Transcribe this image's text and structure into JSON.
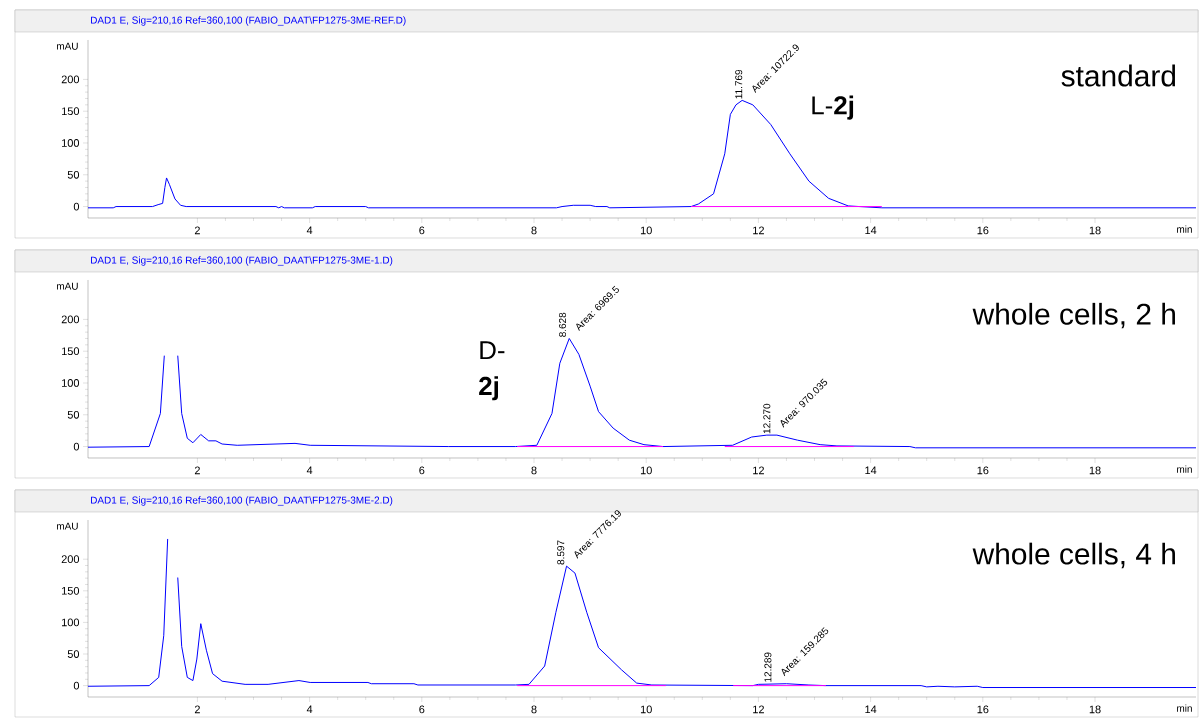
{
  "chart_data": [
    {
      "type": "line",
      "title": "DAD1 E, Sig=210,16 Ref=360,100 (FABIO_DAAT\\FP1275-3ME-REF.D)",
      "xlabel": "min",
      "ylabel": "mAU",
      "xlim": [
        0.05,
        19.8
      ],
      "ylim": [
        -18,
        262
      ],
      "xticks": [
        2,
        4,
        6,
        8,
        10,
        12,
        14,
        16,
        18
      ],
      "yticks": [
        0,
        50,
        100,
        150,
        200
      ],
      "series": [
        {
          "color": "#0000ff",
          "x": [
            0.05,
            0.5,
            0.55,
            1.2,
            1.3,
            1.38,
            1.42,
            1.45,
            1.5,
            1.6,
            1.7,
            1.8,
            3.4,
            3.45,
            3.5,
            3.55,
            4.05,
            4.1,
            5.0,
            5.05,
            8.4,
            8.5,
            8.7,
            9.0,
            9.1,
            9.3,
            9.35,
            10.8,
            10.93,
            11.2,
            11.4,
            11.5,
            11.6,
            11.71,
            11.9,
            12.22,
            12.56,
            12.9,
            13.25,
            13.6,
            14.2,
            19.8
          ],
          "values": [
            -2,
            -2,
            0,
            0,
            3,
            5,
            30,
            45,
            35,
            12,
            2,
            0,
            0,
            -2,
            0,
            -2,
            -2,
            0,
            0,
            -2,
            -2,
            0,
            2,
            2,
            0,
            0,
            -2,
            0,
            4,
            20,
            83,
            145,
            160,
            167,
            160,
            129,
            83,
            40,
            13,
            1,
            -2,
            -2
          ]
        },
        {
          "color": "#ff00ff",
          "x": [
            10.8,
            14.2
          ],
          "values": [
            0,
            0
          ]
        }
      ],
      "annotations": [
        "standard",
        "L-**2j**",
        {
          "text": "11.769",
          "x": 11.769,
          "y": 167
        },
        {
          "text": "Area: 10722.9",
          "x": 11.769,
          "y": 167
        }
      ]
    },
    {
      "type": "line",
      "title": "DAD1 E, Sig=210,16 Ref=360,100 (FABIO_DAAT\\FP1275-3ME-1.D)",
      "xlabel": "min",
      "ylabel": "mAU",
      "xlim": [
        0.05,
        19.8
      ],
      "ylim": [
        -18,
        262
      ],
      "xticks": [
        2,
        4,
        6,
        8,
        10,
        12,
        14,
        16,
        18
      ],
      "yticks": [
        0,
        50,
        100,
        150,
        200
      ],
      "series": [
        {
          "color": "#0000ff",
          "x": [
            0.05,
            1.14,
            1.34,
            1.41,
            1.48,
            1.58,
            1.65,
            1.72,
            1.82,
            1.92,
            2.06,
            2.2,
            2.33,
            2.44,
            2.71,
            3.74,
            4.01,
            6.48,
            7.67,
            8.05,
            8.32,
            8.46,
            8.628,
            8.8,
            9.0,
            9.15,
            9.41,
            9.7,
            9.96,
            10.3,
            11.54,
            11.88,
            12.15,
            12.33,
            12.7,
            13.1,
            13.4,
            14.7,
            14.8,
            19.8
          ],
          "values": [
            -1,
            0,
            52,
            143,
            null,
            null,
            143,
            52,
            13,
            6,
            19,
            9,
            9,
            4,
            2,
            5,
            2,
            0,
            0,
            2,
            52,
            131,
            170,
            145,
            95,
            55,
            29,
            10,
            3,
            0,
            2,
            15,
            18,
            18,
            10,
            3,
            1,
            0,
            -2,
            -2
          ]
        },
        {
          "color": "#ff00ff",
          "x": [
            7.7,
            10.3,
            10.31,
            11.4,
            13.7
          ],
          "values": [
            0,
            0,
            null,
            0,
            0
          ]
        }
      ],
      "annotations": [
        "whole cells, 2 h",
        "D-**2j**",
        {
          "text": "8.628",
          "x": 8.628,
          "y": 170
        },
        {
          "text": "Area: 6969.5",
          "x": 8.628,
          "y": 170
        },
        {
          "text": "12.270",
          "x": 12.27,
          "y": 18
        },
        {
          "text": "Area: 970.035",
          "x": 12.27,
          "y": 18
        }
      ]
    },
    {
      "type": "line",
      "title": "DAD1 E, Sig=210,16 Ref=360,100 (FABIO_DAAT\\FP1275-3ME-2.D)",
      "xlabel": "min",
      "ylabel": "mAU",
      "xlim": [
        0.05,
        19.8
      ],
      "ylim": [
        -18,
        262
      ],
      "xticks": [
        2,
        4,
        6,
        8,
        10,
        12,
        14,
        16,
        18
      ],
      "yticks": [
        0,
        50,
        100,
        150,
        200
      ],
      "series": [
        {
          "color": "#0000ff",
          "x": [
            0.05,
            1.14,
            1.31,
            1.4,
            1.47,
            1.49,
            1.6,
            1.65,
            1.72,
            1.82,
            1.92,
            1.99,
            2.06,
            2.16,
            2.27,
            2.44,
            2.85,
            3.26,
            3.81,
            4.01,
            5.04,
            5.1,
            5.86,
            5.93,
            7.67,
            7.91,
            8.19,
            8.39,
            8.58,
            8.73,
            8.94,
            9.15,
            9.56,
            9.83,
            10.1,
            11.9,
            12.0,
            12.5,
            12.9,
            13.2,
            14.9,
            15.0,
            15.2,
            15.5,
            15.9,
            16.0,
            19.8
          ],
          "values": [
            -1,
            0,
            13,
            79,
            232,
            null,
            null,
            171,
            62,
            13,
            8,
            42,
            98,
            56,
            19,
            7,
            2,
            2,
            8,
            5,
            5,
            3,
            3,
            1,
            1,
            2,
            31,
            116,
            189,
            178,
            116,
            60,
            25,
            4,
            1,
            0,
            2,
            3,
            1,
            0,
            0,
            -2,
            -1,
            -2,
            -1,
            -3,
            -3
          ]
        },
        {
          "color": "#ff00ff",
          "x": [
            7.7,
            10.35,
            10.36,
            11.55,
            13.2
          ],
          "values": [
            0,
            0,
            null,
            0,
            0
          ]
        }
      ],
      "annotations": [
        "whole cells, 4 h",
        {
          "text": "8.597",
          "x": 8.597,
          "y": 189
        },
        {
          "text": "Area: 7776.19",
          "x": 8.597,
          "y": 189
        },
        {
          "text": "12.289",
          "x": 12.289,
          "y": 3
        },
        {
          "text": "Area: 159.285",
          "x": 12.289,
          "y": 3
        }
      ]
    }
  ]
}
